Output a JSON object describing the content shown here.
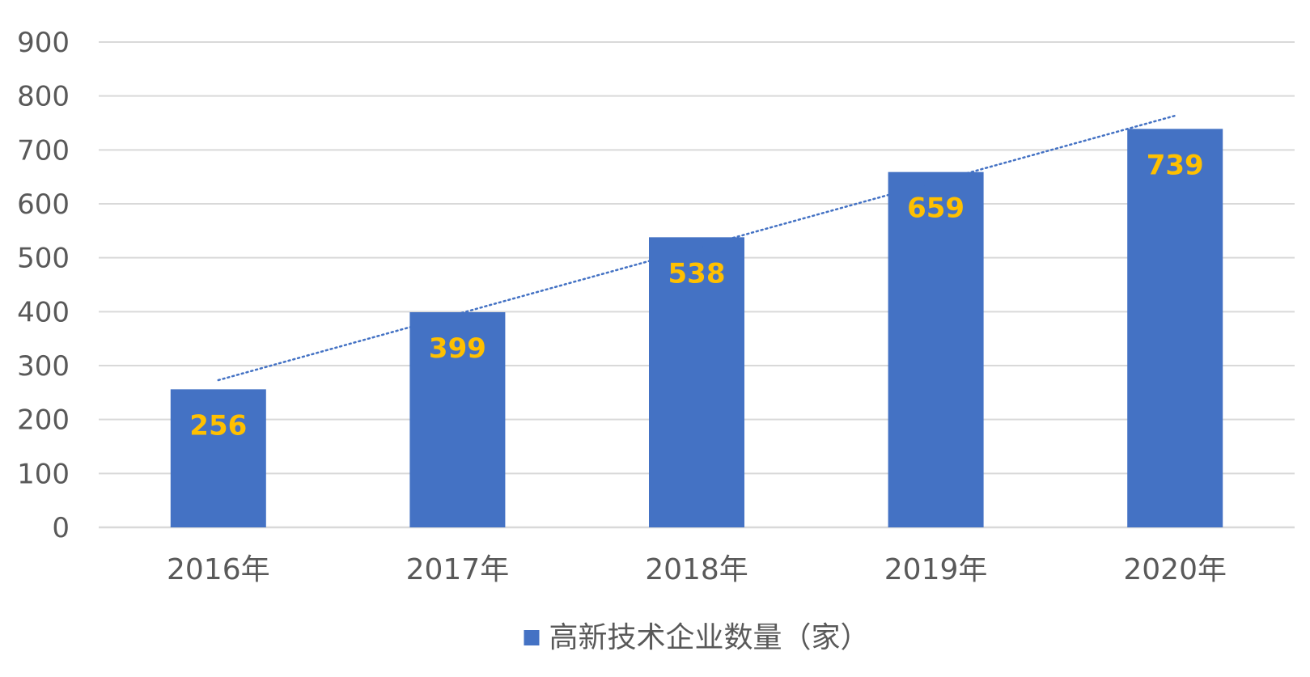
{
  "chart_data": {
    "type": "bar",
    "categories": [
      "2016年",
      "2017年",
      "2018年",
      "2019年",
      "2020年"
    ],
    "series": [
      {
        "name": "高新技术企业数量（家）",
        "values": [
          256,
          399,
          538,
          659,
          739
        ],
        "color": "#4472C4"
      }
    ],
    "ylim": [
      0,
      900
    ],
    "yticks": [
      "0",
      "100",
      "200",
      "300",
      "400",
      "500",
      "600",
      "700",
      "800",
      "900"
    ],
    "grid": true,
    "legend_position": "bottom",
    "data_label_color": "#FFC000",
    "trendline": {
      "type": "linear",
      "style": "dotted",
      "color": "#4472C4"
    },
    "gridline_color": "#D9D9D9",
    "axis_text_color": "#595959"
  }
}
